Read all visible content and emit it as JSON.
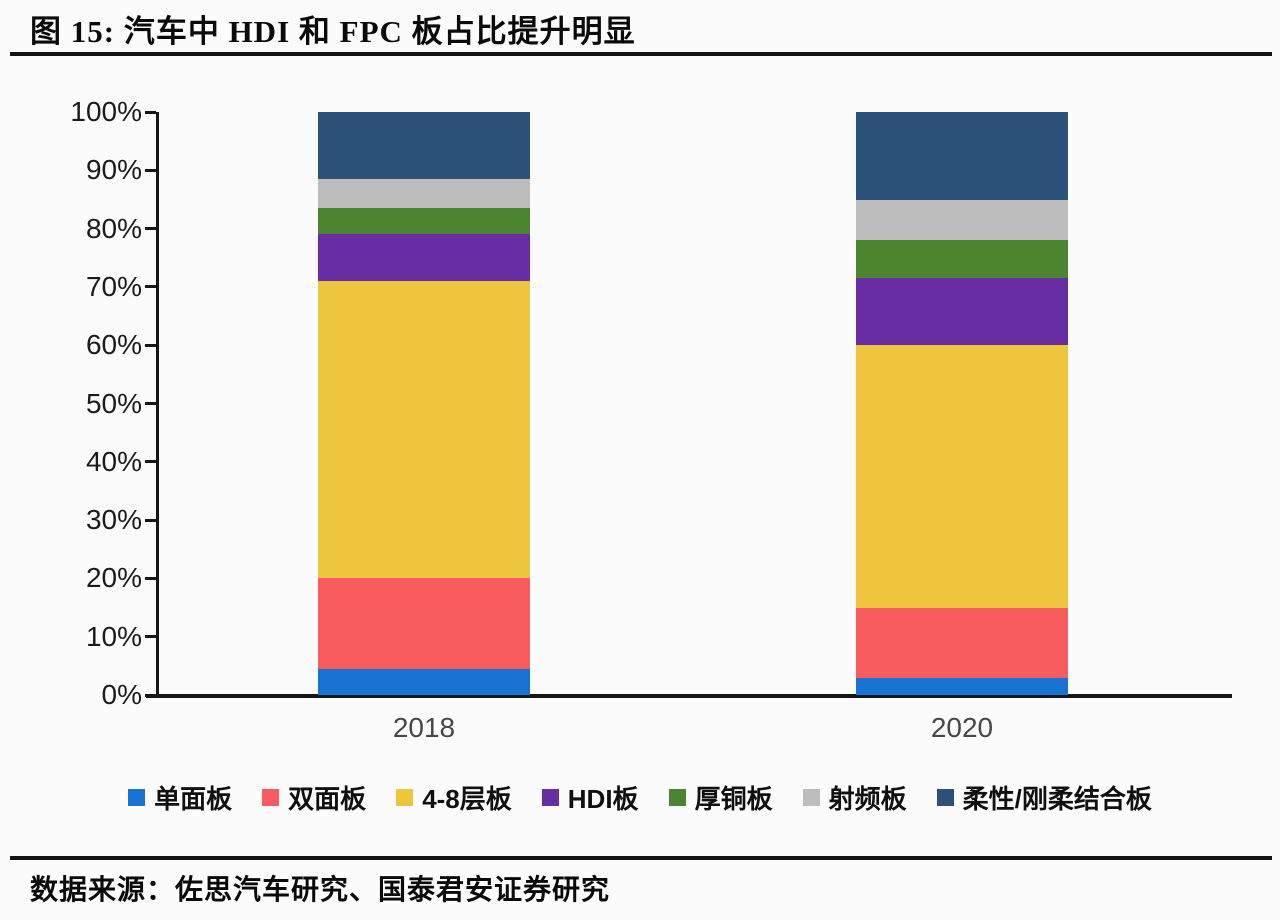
{
  "figure": {
    "title": "图 15:  汽车中 HDI 和 FPC 板占比提升明显",
    "source": "数据来源：佐思汽车研究、国泰君安证券研究"
  },
  "chart_data": {
    "type": "bar",
    "subtype": "stacked-percent",
    "title": "汽车中 HDI 和 FPC 板占比提升明显",
    "categories": [
      "2018",
      "2020"
    ],
    "series": [
      {
        "name": "单面板",
        "color": "#1873d3",
        "values": [
          4.5,
          3
        ]
      },
      {
        "name": "双面板",
        "color": "#f85c5f",
        "values": [
          15.5,
          12
        ]
      },
      {
        "name": "4-8层板",
        "color": "#eec63d",
        "values": [
          51,
          45
        ]
      },
      {
        "name": "HDI板",
        "color": "#672da2",
        "values": [
          8,
          11.5
        ]
      },
      {
        "name": "厚铜板",
        "color": "#4c852f",
        "values": [
          4.5,
          6.5
        ]
      },
      {
        "name": "射频板",
        "color": "#bdbdbd",
        "values": [
          5,
          7
        ]
      },
      {
        "name": "柔性/刚柔结合板",
        "color": "#2c527a",
        "values": [
          11.5,
          15
        ]
      }
    ],
    "xlabel": "",
    "ylabel": "",
    "ylim": [
      0,
      100
    ],
    "y_tick_step": 10,
    "y_tick_labels": [
      "0%",
      "10%",
      "20%",
      "30%",
      "40%",
      "50%",
      "60%",
      "70%",
      "80%",
      "90%",
      "100%"
    ],
    "grid": false,
    "legend_position": "bottom"
  }
}
